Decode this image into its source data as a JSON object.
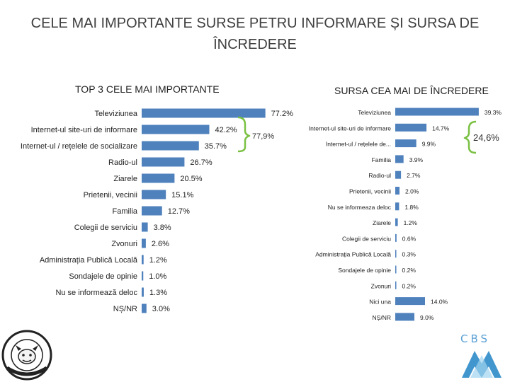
{
  "title": "CELE MAI IMPORTANTE SURSE PETRU INFORMARE ȘI SURSA DE ÎNCREDERE",
  "chart_data": [
    {
      "type": "bar",
      "orientation": "horizontal",
      "title": "TOP 3 CELE MAI IMPORTANTE",
      "categories": [
        "Televiziunea",
        "Internet-ul site-uri de informare",
        "Internet-ul / rețelele de socializare",
        "Radio-ul",
        "Ziarele",
        "Prietenii, vecinii",
        "Familia",
        "Colegii de serviciu",
        "Zvonuri",
        "Administrația Publică Locală",
        "Sondajele de opinie",
        "Nu se informează deloc",
        "NȘ/NR"
      ],
      "values": [
        77.2,
        42.2,
        35.7,
        26.7,
        20.5,
        15.1,
        12.7,
        3.8,
        2.6,
        1.2,
        1.0,
        1.3,
        3.0
      ],
      "labels": [
        "77.2%",
        "42.2%",
        "35.7%",
        "26.7%",
        "20.5%",
        "15.1%",
        "12.7%",
        "3.8%",
        "2.6%",
        "1.2%",
        "1.0%",
        "1.3%",
        "3.0%"
      ],
      "annotation": "77,9%",
      "xlim": [
        0,
        80
      ],
      "color": "#4f81bd"
    },
    {
      "type": "bar",
      "orientation": "horizontal",
      "title": "SURSA CEA MAI DE ÎNCREDERE",
      "categories": [
        "Televiziunea",
        "Internet-ul site-uri de informare",
        "Internet-ul / rețelele de...",
        "Familia",
        "Radio-ul",
        "Prietenii, vecinii",
        "Nu se informeaza deloc",
        "Ziarele",
        "Colegii de serviciu",
        "Administrația Publică Locală",
        "Sondajele de opinie",
        "Zvonuri",
        "Nici una",
        "NȘ/NR"
      ],
      "values": [
        39.3,
        14.7,
        9.9,
        3.9,
        2.7,
        2.0,
        1.8,
        1.2,
        0.6,
        0.3,
        0.2,
        0.2,
        14.0,
        9.0
      ],
      "labels": [
        "39.3%",
        "14.7%",
        "9.9%",
        "3.9%",
        "2.7%",
        "2.0%",
        "1.8%",
        "1.2%",
        "0.6%",
        "0.3%",
        "0.2%",
        "0.2%",
        "14.0%",
        "9.0%"
      ],
      "annotation": "24,6%",
      "xlim": [
        0,
        40
      ],
      "color": "#4f81bd"
    }
  ],
  "logos": {
    "right_text": "CBS"
  },
  "colors": {
    "bar": "#4f81bd",
    "brace": "#7ac143"
  }
}
